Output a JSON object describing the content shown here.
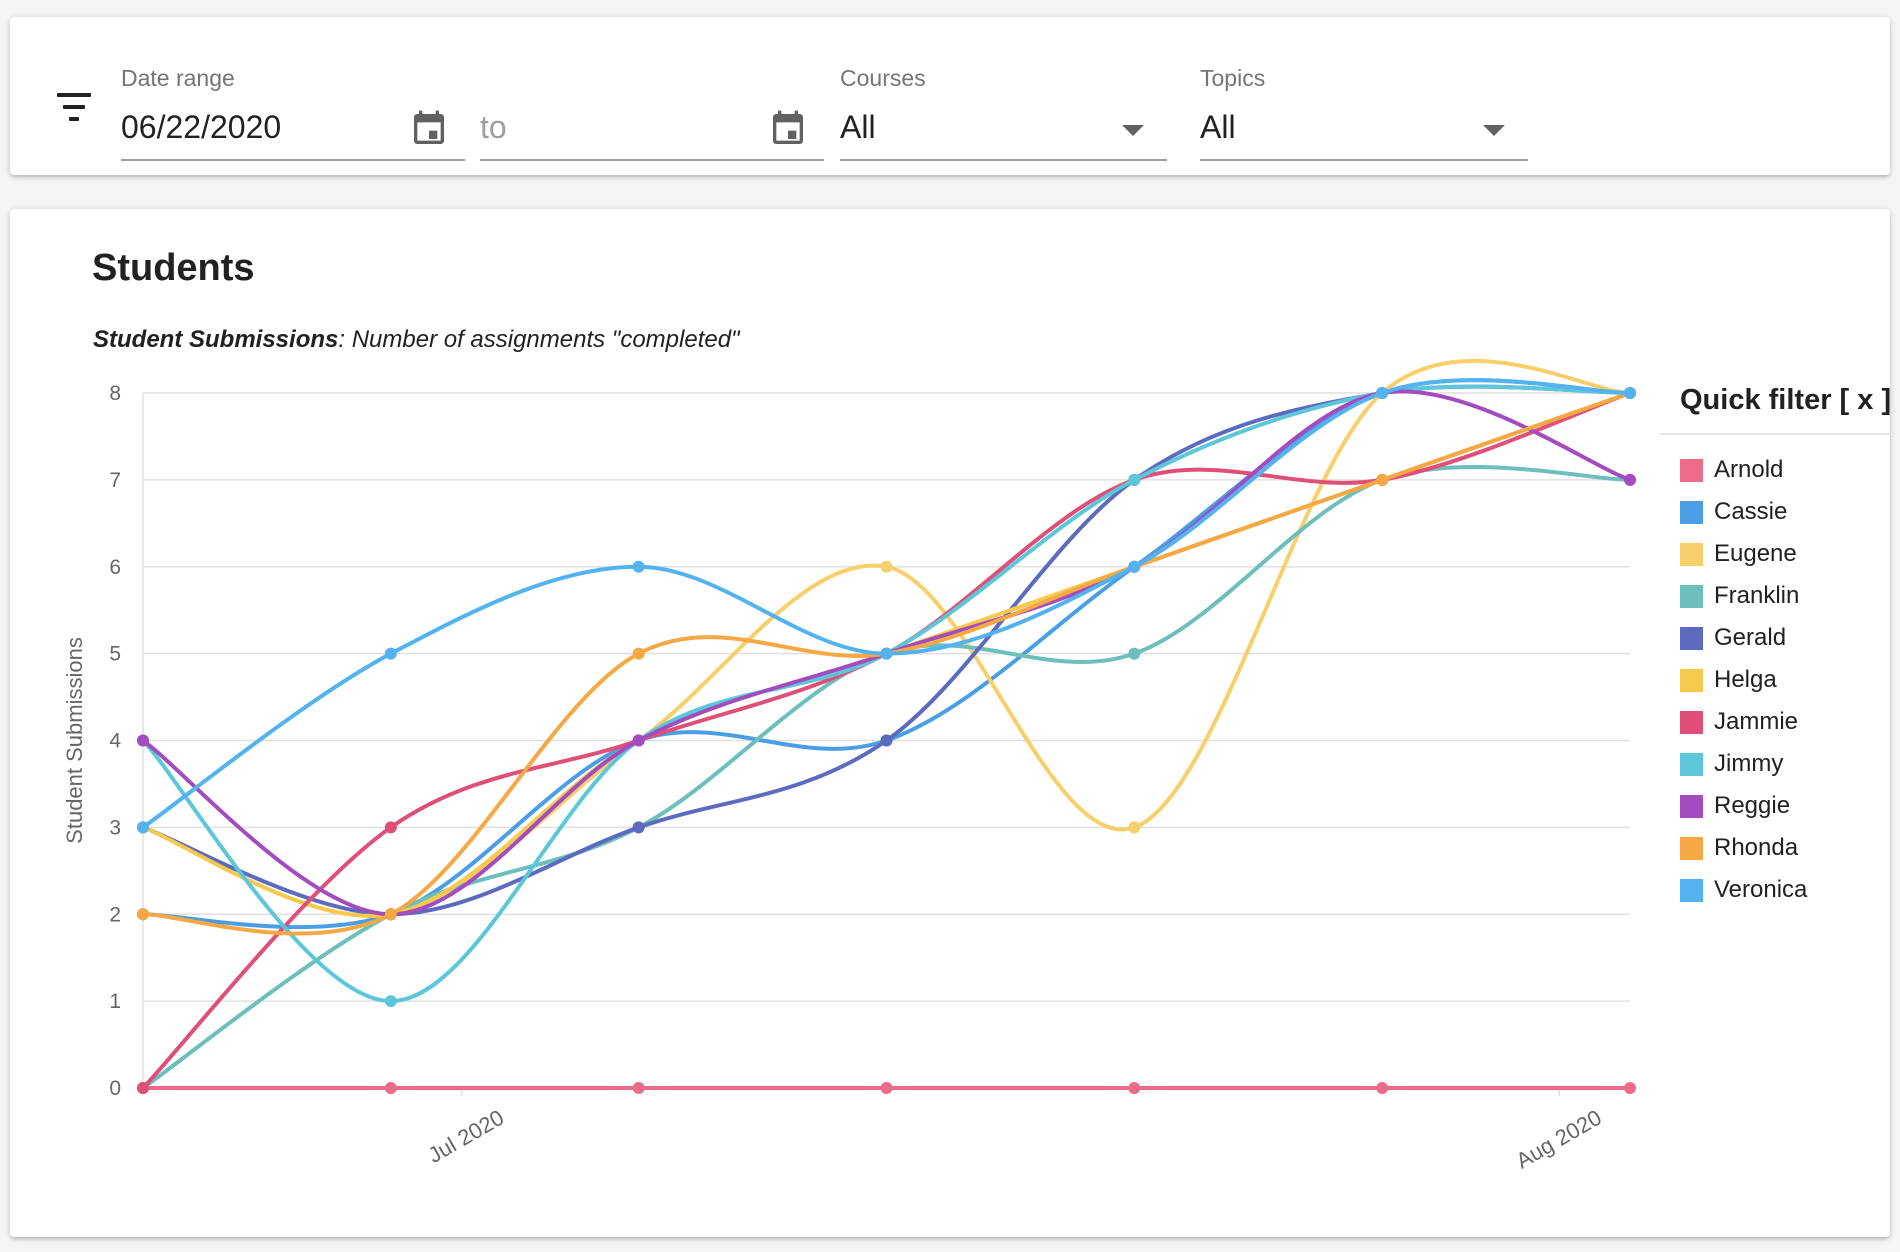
{
  "filters": {
    "date_range_label": "Date range",
    "date_from": "06/22/2020",
    "date_to_placeholder": "to",
    "courses_label": "Courses",
    "courses_value": "All",
    "topics_label": "Topics",
    "topics_value": "All"
  },
  "panel": {
    "title": "Students",
    "subtitle_bold": "Student Submissions",
    "subtitle_rest": ": Number of assignments \"completed\""
  },
  "legend_title": "Quick filter [ x ]",
  "chart_data": {
    "type": "line",
    "ylabel": "Student Submissions",
    "xlabel": "",
    "ylim": [
      0,
      8
    ],
    "yticks": [
      0,
      1,
      2,
      3,
      4,
      5,
      6,
      7,
      8
    ],
    "x": [
      "2020-06-22",
      "2020-06-29",
      "2020-07-06",
      "2020-07-13",
      "2020-07-20",
      "2020-07-27",
      "2020-08-03"
    ],
    "x_tick_labels": [
      {
        "x": "2020-07-01",
        "label": "Jul 2020"
      },
      {
        "x": "2020-08-01",
        "label": "Aug 2020"
      }
    ],
    "grid": true,
    "legend_position": "right",
    "series": [
      {
        "name": "Arnold",
        "color": "#ec6b86",
        "values": [
          0,
          0,
          0,
          0,
          0,
          0,
          0
        ]
      },
      {
        "name": "Cassie",
        "color": "#4a9fe4",
        "values": [
          2,
          2,
          4,
          4,
          6,
          8,
          8
        ]
      },
      {
        "name": "Eugene",
        "color": "#f8cf6b",
        "values": [
          3,
          2,
          4,
          6,
          3,
          8,
          8
        ]
      },
      {
        "name": "Franklin",
        "color": "#6cbfbb",
        "values": [
          0,
          2,
          3,
          5,
          5,
          7,
          7
        ]
      },
      {
        "name": "Gerald",
        "color": "#5c6bc0",
        "values": [
          3,
          2,
          3,
          4,
          7,
          8,
          8
        ]
      },
      {
        "name": "Helga",
        "color": "#f7c94c",
        "values": [
          3,
          2,
          4,
          5,
          6,
          7,
          8
        ]
      },
      {
        "name": "Jammie",
        "color": "#df4f78",
        "values": [
          0,
          3,
          4,
          5,
          7,
          7,
          8
        ]
      },
      {
        "name": "Jimmy",
        "color": "#5cc7d8",
        "values": [
          4,
          1,
          4,
          5,
          7,
          8,
          8
        ]
      },
      {
        "name": "Reggie",
        "color": "#a24cc0",
        "values": [
          4,
          2,
          4,
          5,
          6,
          8,
          7
        ]
      },
      {
        "name": "Rhonda",
        "color": "#f5a843",
        "values": [
          2,
          2,
          5,
          5,
          6,
          7,
          8
        ]
      },
      {
        "name": "Veronica",
        "color": "#53b3f0",
        "values": [
          3,
          5,
          6,
          5,
          6,
          8,
          8
        ]
      }
    ]
  }
}
